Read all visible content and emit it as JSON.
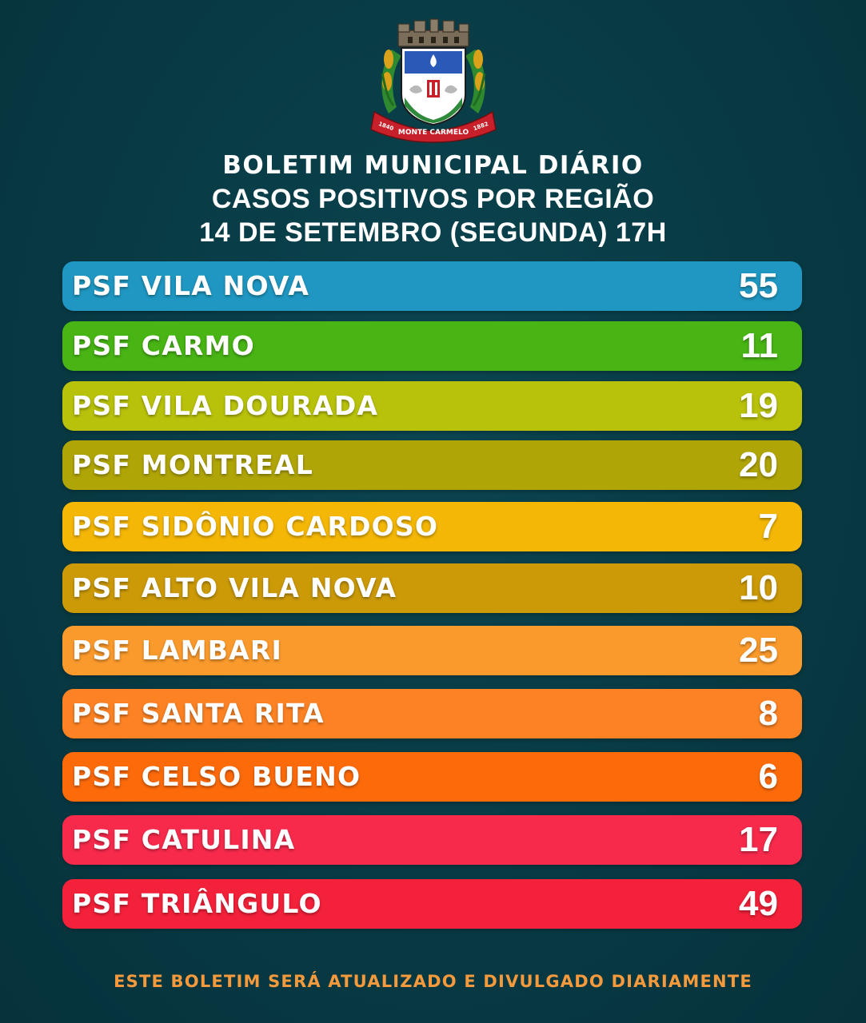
{
  "crest": {
    "motto": "MONTE CARMELO",
    "year_left": "1840",
    "year_right": "1882"
  },
  "titles": {
    "line1": "BOLETIM MUNICIPAL DIÁRIO",
    "line2": "CASOS POSITIVOS POR REGIÃO",
    "line3": "14 DE SETEMBRO (SEGUNDA) 17H"
  },
  "rows": [
    {
      "label": "PSF VILA NOVA",
      "value": "55",
      "color": "#1f97c2"
    },
    {
      "label": "PSF CARMO",
      "value": "11",
      "color": "#48b514"
    },
    {
      "label": "PSF VILA DOURADA",
      "value": "19",
      "color": "#b9c20a"
    },
    {
      "label": "PSF MONTREAL",
      "value": "20",
      "color": "#b0a506"
    },
    {
      "label": "PSF SIDÔNIO CARDOSO",
      "value": "7",
      "color": "#f4b705"
    },
    {
      "label": "PSF ALTO VILA NOVA",
      "value": "10",
      "color": "#cc9a07"
    },
    {
      "label": "PSF LAMBARI",
      "value": "25",
      "color": "#fb9a2c"
    },
    {
      "label": "PSF SANTA RITA",
      "value": "8",
      "color": "#fc8224"
    },
    {
      "label": "PSF CELSO BUENO",
      "value": "6",
      "color": "#fd6a0a"
    },
    {
      "label": "PSF CATULINA",
      "value": "17",
      "color": "#f72a4c"
    },
    {
      "label": "PSF TRIÂNGULO",
      "value": "49",
      "color": "#f4213a"
    }
  ],
  "footer": {
    "text": "ESTE BOLETIM SERÁ ATUALIZADO E DIVULGADO DIARIAMENTE",
    "color": "#f59a3c"
  },
  "colors": {
    "background": "#083a44",
    "text": "#ffffff"
  }
}
